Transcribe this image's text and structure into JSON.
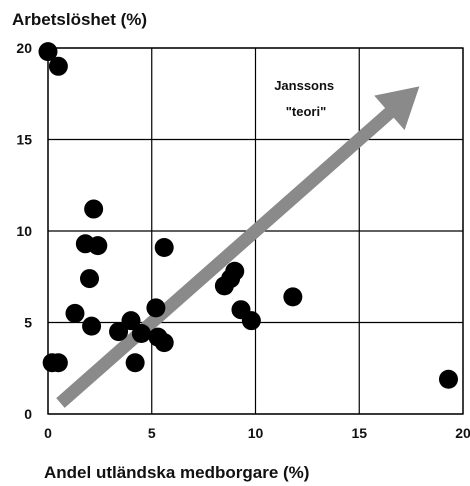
{
  "chart_data": {
    "type": "scatter",
    "title": "",
    "ylabel": "Arbetslöshet (%)",
    "xlabel": "Andel utländska medborgare (%)",
    "xlim": [
      0,
      20
    ],
    "ylim": [
      0,
      20
    ],
    "xticks": [
      "0",
      "5",
      "10",
      "15",
      "20"
    ],
    "yticks": [
      "0",
      "5",
      "10",
      "15",
      "20"
    ],
    "grid": true,
    "marker_color": "#000000",
    "arrow_color": "#8a8a8a",
    "points": [
      {
        "x": 0.0,
        "y": 19.8
      },
      {
        "x": 0.5,
        "y": 19.0
      },
      {
        "x": 0.2,
        "y": 2.8
      },
      {
        "x": 0.5,
        "y": 2.8
      },
      {
        "x": 1.3,
        "y": 5.5
      },
      {
        "x": 1.8,
        "y": 9.3
      },
      {
        "x": 2.0,
        "y": 7.4
      },
      {
        "x": 2.1,
        "y": 4.8
      },
      {
        "x": 2.2,
        "y": 11.2
      },
      {
        "x": 2.4,
        "y": 9.2
      },
      {
        "x": 3.4,
        "y": 4.5
      },
      {
        "x": 4.0,
        "y": 5.1
      },
      {
        "x": 4.2,
        "y": 2.8
      },
      {
        "x": 4.5,
        "y": 4.4
      },
      {
        "x": 5.2,
        "y": 5.8
      },
      {
        "x": 5.3,
        "y": 4.2
      },
      {
        "x": 5.6,
        "y": 3.9
      },
      {
        "x": 5.6,
        "y": 9.1
      },
      {
        "x": 8.5,
        "y": 7.0
      },
      {
        "x": 8.8,
        "y": 7.4
      },
      {
        "x": 9.0,
        "y": 7.8
      },
      {
        "x": 9.3,
        "y": 5.7
      },
      {
        "x": 9.8,
        "y": 5.1
      },
      {
        "x": 11.8,
        "y": 6.4
      },
      {
        "x": 19.3,
        "y": 1.9
      }
    ],
    "annotation": {
      "lines": [
        "Janssons",
        "\"teori\""
      ],
      "arrow_from": {
        "x": 0.6,
        "y": 0.6
      },
      "arrow_to": {
        "x": 17.9,
        "y": 17.9
      }
    }
  }
}
